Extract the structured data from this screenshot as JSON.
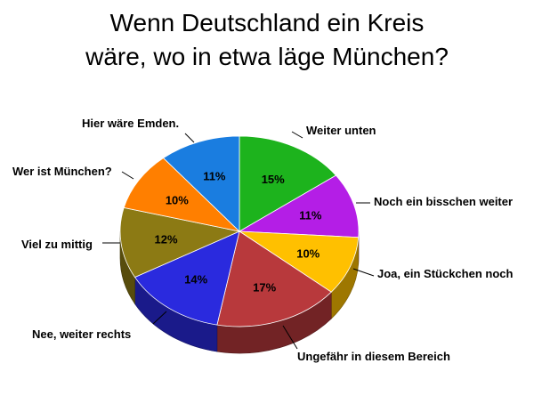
{
  "chart_data": {
    "type": "pie",
    "title_lines": [
      "Wenn Deutschland ein Kreis",
      "wäre, wo in etwa läge München?"
    ],
    "slices": [
      {
        "label": "Weiter unten",
        "value": 15,
        "value_label": "15%",
        "color": "#1db31d"
      },
      {
        "label": "Noch ein bisschen weiter",
        "value": 11,
        "value_label": "11%",
        "color": "#b41ee6"
      },
      {
        "label": "Joa, ein Stückchen noch",
        "value": 10,
        "value_label": "10%",
        "color": "#ffc000"
      },
      {
        "label": "Ungefähr in diesem Bereich",
        "value": 17,
        "value_label": "17%",
        "color": "#b8393c"
      },
      {
        "label": "Nee, weiter rechts",
        "value": 14,
        "value_label": "14%",
        "color": "#2a2ade"
      },
      {
        "label": "Viel zu mittig",
        "value": 12,
        "value_label": "12%",
        "color": "#8c7a14"
      },
      {
        "label": "Wer ist München?",
        "value": 10,
        "value_label": "10%",
        "color": "#ff7f00"
      },
      {
        "label": "Hier wäre Emden.",
        "value": 11,
        "value_label": "11%",
        "color": "#1a7de0"
      }
    ],
    "start_angle": "12 o'clock",
    "direction": "clockwise",
    "style": "3d-tilted"
  }
}
